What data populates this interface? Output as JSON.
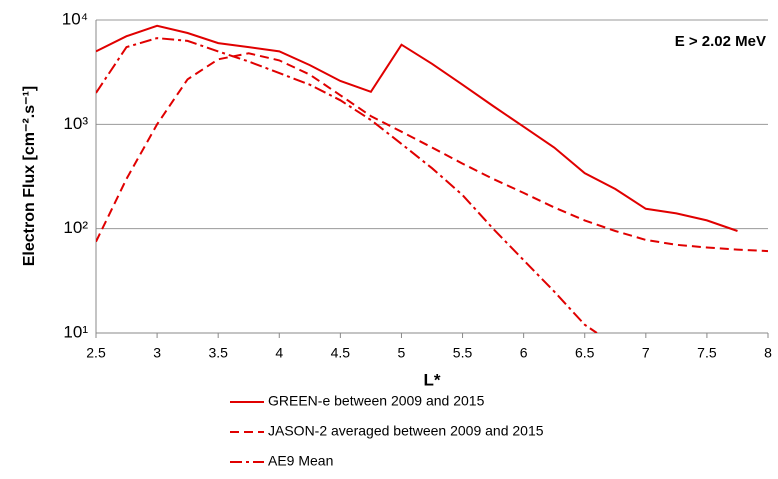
{
  "chart_data": {
    "type": "line",
    "annotation": "E > 2.02 MeV",
    "xlabel": "L*",
    "ylabel": "Electron Flux [cm⁻².s⁻¹]",
    "xlim": [
      2.5,
      8
    ],
    "xticks": [
      2.5,
      3,
      3.5,
      4,
      4.5,
      5,
      5.5,
      6,
      6.5,
      7,
      7.5,
      8
    ],
    "ylim": [
      10,
      10000
    ],
    "log_y": true,
    "grid": true,
    "yticks": [
      {
        "value": 10,
        "label": "10¹"
      },
      {
        "value": 100,
        "label": "10²"
      },
      {
        "value": 1000,
        "label": "10³"
      },
      {
        "value": 10000,
        "label": "10⁴"
      }
    ],
    "series": [
      {
        "name": "GREEN-e between 2009 and 2015",
        "color": "#e00000",
        "style": "solid",
        "x": [
          2.5,
          2.75,
          3,
          3.25,
          3.5,
          3.75,
          4,
          4.25,
          4.5,
          4.75,
          5,
          5.25,
          5.5,
          5.75,
          6,
          6.25,
          6.5,
          6.75,
          7,
          7.25,
          7.5,
          7.75
        ],
        "values": [
          5000,
          7000,
          8800,
          7500,
          6000,
          5500,
          5000,
          3700,
          2600,
          2050,
          5800,
          3800,
          2400,
          1500,
          950,
          600,
          340,
          240,
          155,
          140,
          120,
          95
        ]
      },
      {
        "name": "JASON-2 averaged between 2009 and 2015",
        "color": "#e00000",
        "style": "dashed",
        "x": [
          2.5,
          2.75,
          3,
          3.25,
          3.5,
          3.75,
          4,
          4.25,
          4.5,
          4.75,
          5,
          5.25,
          5.5,
          5.75,
          6,
          6.25,
          6.5,
          6.75,
          7,
          7.25,
          7.5,
          7.75,
          8
        ],
        "values": [
          75,
          300,
          1000,
          2700,
          4200,
          4800,
          4100,
          3000,
          1900,
          1200,
          850,
          600,
          420,
          300,
          220,
          160,
          120,
          95,
          78,
          70,
          66,
          63,
          61
        ]
      },
      {
        "name": "AE9 Mean",
        "color": "#e00000",
        "style": "dashdot",
        "x": [
          2.5,
          2.75,
          3,
          3.25,
          3.5,
          3.75,
          4,
          4.25,
          4.5,
          4.75,
          5,
          5.25,
          5.5,
          5.75,
          6,
          6.25,
          6.5,
          6.6
        ],
        "values": [
          2000,
          5500,
          6700,
          6300,
          5000,
          4000,
          3100,
          2400,
          1700,
          1100,
          650,
          380,
          210,
          100,
          50,
          25,
          12,
          10
        ]
      }
    ]
  }
}
